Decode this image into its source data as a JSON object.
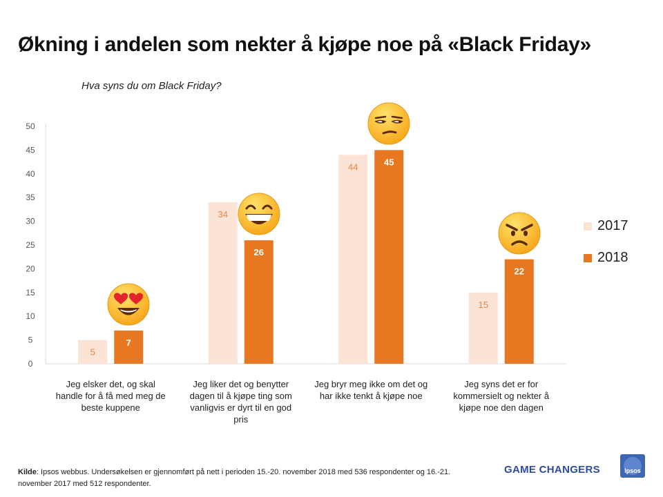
{
  "title": "Økning i andelen som nekter å kjøpe noe på «Black Friday»",
  "subtitle": "Hva syns du om Black Friday?",
  "chart_data": {
    "type": "bar",
    "categories": [
      "Jeg elsker det, og skal handle for å få med meg de beste kuppene",
      "Jeg liker det og benytter dagen til å kjøpe ting som vanligvis er dyrt til en god pris",
      "Jeg bryr meg ikke om det og har ikke tenkt å kjøpe noe",
      "Jeg syns det er for kommersielt og nekter å kjøpe noe den dagen"
    ],
    "series": [
      {
        "name": "2017",
        "values": [
          5,
          34,
          44,
          15
        ],
        "color": "#fbe3d5"
      },
      {
        "name": "2018",
        "values": [
          7,
          26,
          45,
          22
        ],
        "color": "#e87722"
      }
    ],
    "ylim": [
      0,
      50
    ],
    "yticks": [
      0,
      5,
      10,
      15,
      20,
      25,
      30,
      35,
      40,
      45,
      50
    ],
    "legend_position": "right",
    "grid": false,
    "emojis": [
      "heart-eyes-emoji",
      "grinning-emoji",
      "unamused-emoji",
      "angry-emoji"
    ]
  },
  "legend": {
    "items": [
      "2017",
      "2018"
    ]
  },
  "footer": {
    "label": "Kilde",
    "text": ":  Ipsos webbus. Undersøkelsen er gjennomført på nett i perioden 15.-20. november 2018 med 536 respondenter og 16.-21. november 2017 med 512 respondenter."
  },
  "brand": {
    "tagline": "GAME CHANGERS",
    "logo_text": "Ipsos"
  }
}
